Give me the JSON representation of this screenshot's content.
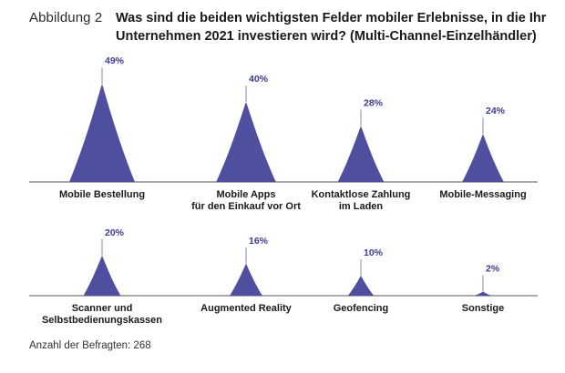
{
  "figure_label": "Abbildung 2",
  "title_lines": [
    "Was sind die beiden wichtigsten Felder mobiler Erlebnisse, in die Ihr",
    "Unternehmen 2021 investieren wird? (Multi-Channel-Einzelhändler)"
  ],
  "footnote": "Anzahl der Befragten: 268",
  "colors": {
    "fill": "#4f4f9f",
    "leader": "#8888bb",
    "value_text": "#3b3b8f",
    "baseline": "#555555"
  },
  "chart_data": {
    "type": "bar",
    "title": "Was sind die beiden wichtigsten Felder mobiler Erlebnisse, in die Ihr Unternehmen 2021 investieren wird? (Multi-Channel-Einzelhändler)",
    "unit": "%",
    "ylim": [
      0,
      60
    ],
    "categories": [
      "Mobile Bestellung",
      "Mobile Apps für den Einkauf vor Ort",
      "Kontaktlose Zahlung im Laden",
      "Mobile-Messaging",
      "Scanner und Selbstbedienungskassen",
      "Augmented Reality",
      "Geofencing",
      "Sonstige"
    ],
    "values": [
      49,
      40,
      28,
      24,
      20,
      16,
      10,
      2
    ],
    "value_labels": [
      "49%",
      "40%",
      "28%",
      "24%",
      "20%",
      "16%",
      "10%",
      "2%"
    ],
    "category_label_lines": [
      [
        "Mobile Bestellung"
      ],
      [
        "Mobile Apps",
        "für den Einkauf vor Ort"
      ],
      [
        "Kontaktlose Zahlung",
        "im Laden"
      ],
      [
        "Mobile-Messaging"
      ],
      [
        "Scanner und",
        "Selbstbedienungskassen"
      ],
      [
        "Augmented Reality"
      ],
      [
        "Geofencing"
      ],
      [
        "Sonstige"
      ]
    ],
    "rows": 2,
    "per_row": 4
  }
}
